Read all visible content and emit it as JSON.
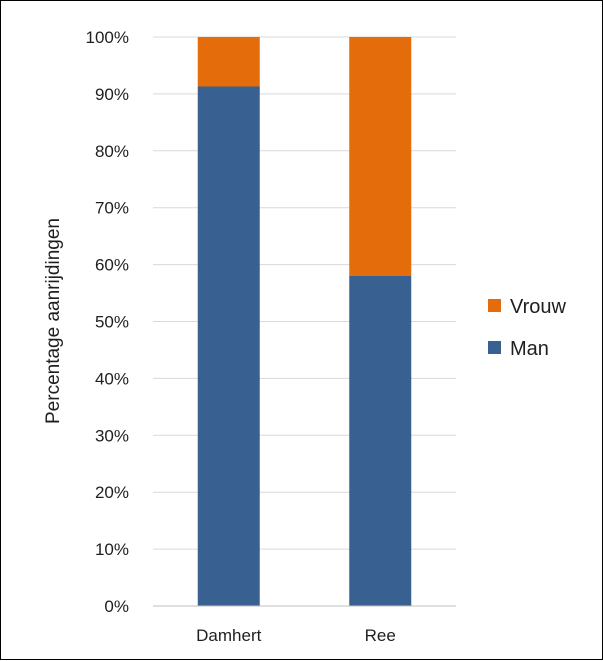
{
  "chart_data": {
    "type": "bar",
    "stacked": true,
    "categories": [
      "Damhert",
      "Ree"
    ],
    "series": [
      {
        "name": "Man",
        "values": [
          91.3,
          58.0
        ],
        "color": "#386090"
      },
      {
        "name": "Vrouw",
        "values": [
          8.7,
          42.0
        ],
        "color": "#E46C0A"
      }
    ],
    "ylabel": "Percentage aanrijdingen",
    "ylim": [
      0,
      100
    ],
    "yticks": [
      "0%",
      "10%",
      "20%",
      "30%",
      "40%",
      "50%",
      "60%",
      "70%",
      "80%",
      "90%",
      "100%"
    ],
    "grid": true,
    "legend": {
      "position": "right",
      "order": [
        "Vrouw",
        "Man"
      ]
    }
  }
}
